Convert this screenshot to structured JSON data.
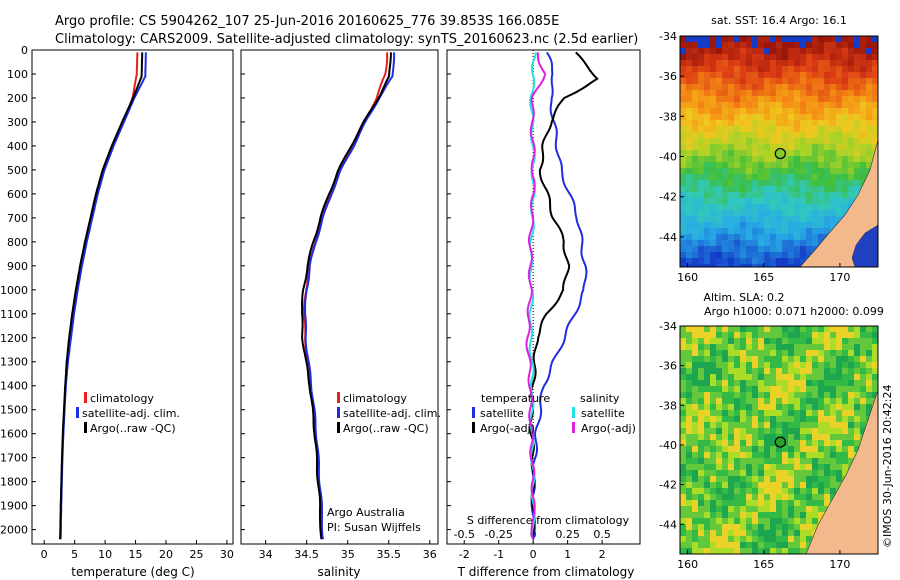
{
  "header": {
    "line1": "Argo profile: CS 5904262_107 25-Jun-2016 20160625_776 39.853S 166.085E",
    "line2": "Climatology: CARS2009. Satellite-adjusted climatology: synTS_20160623.nc (2.5d earlier)"
  },
  "colors": {
    "climatology": "#e8201c",
    "satellite": "#1c2ee0",
    "argo": "#000000",
    "satellite_salinity": "#22e0e6",
    "argo_salinity": "#e020e0",
    "land": "#f3b98d"
  },
  "footer": {
    "institution": "Argo Australia",
    "pi": "PI: Susan Wijffels",
    "stamp": "©IMOS 30-Jun-2016 20:42:24"
  },
  "chart_data": [
    {
      "type": "line",
      "xlabel": "temperature (deg C)",
      "ylabel": "",
      "xlim": [
        -2,
        31
      ],
      "ylim": [
        2060,
        0
      ],
      "xticks": [
        "0",
        "5",
        "10",
        "15",
        "20",
        "25",
        "30"
      ],
      "yticks": [
        "0",
        "100",
        "200",
        "300",
        "400",
        "500",
        "600",
        "700",
        "800",
        "900",
        "1000",
        "1100",
        "1200",
        "1300",
        "1400",
        "1500",
        "1600",
        "1700",
        "1800",
        "1900",
        "2000"
      ],
      "legend": [
        "climatology",
        "satellite-adj. clim.",
        "Argo(..raw -QC)"
      ],
      "series": [
        {
          "name": "climatology",
          "x": [
            15.3,
            15.2,
            14.5,
            13.0,
            11.3,
            9.8,
            8.7,
            7.8,
            6.9,
            6.1,
            5.4,
            4.8,
            4.3,
            3.8,
            3.5,
            3.3,
            3.1,
            2.95,
            2.85,
            2.75,
            2.65
          ],
          "y": [
            10,
            100,
            200,
            300,
            400,
            500,
            600,
            700,
            800,
            900,
            1000,
            1100,
            1200,
            1300,
            1400,
            1500,
            1600,
            1700,
            1800,
            1900,
            2040
          ]
        },
        {
          "name": "satellite-adj. clim.",
          "x": [
            16.7,
            16.6,
            14.8,
            13.1,
            11.4,
            9.9,
            8.8,
            7.9,
            7.0,
            6.2,
            5.5,
            4.9,
            4.4,
            3.9,
            3.55,
            3.35,
            3.15,
            3.0,
            2.9,
            2.8,
            2.7
          ],
          "y": [
            10,
            110,
            200,
            300,
            400,
            500,
            600,
            700,
            800,
            900,
            1000,
            1100,
            1200,
            1300,
            1400,
            1500,
            1600,
            1700,
            1800,
            1900,
            2040
          ]
        },
        {
          "name": "Argo(..raw -QC)",
          "x": [
            16.1,
            16.0,
            14.6,
            12.8,
            11.1,
            9.6,
            8.5,
            7.6,
            6.7,
            5.9,
            5.2,
            4.6,
            4.1,
            3.7,
            3.45,
            3.25,
            3.05,
            2.92,
            2.82,
            2.72,
            2.62
          ],
          "y": [
            10,
            110,
            200,
            300,
            400,
            500,
            600,
            700,
            800,
            900,
            1000,
            1100,
            1200,
            1300,
            1400,
            1500,
            1600,
            1700,
            1800,
            1900,
            2040
          ]
        }
      ]
    },
    {
      "type": "line",
      "xlabel": "salinity",
      "ylabel": "",
      "xlim": [
        33.7,
        36.1
      ],
      "ylim": [
        2060,
        0
      ],
      "xticks": [
        "34",
        "34.5",
        "35",
        "35.5",
        "36"
      ],
      "legend": [
        "climatology",
        "satellite-adj. clim.",
        "Argo(..raw -QC)"
      ],
      "series": [
        {
          "name": "climatology",
          "x": [
            35.48,
            35.46,
            35.35,
            35.2,
            35.05,
            34.9,
            34.78,
            34.68,
            34.6,
            34.53,
            34.49,
            34.47,
            34.48,
            34.51,
            34.55,
            34.58,
            34.61,
            34.63,
            34.65,
            34.67,
            34.69
          ],
          "y": [
            10,
            100,
            200,
            300,
            400,
            500,
            600,
            700,
            800,
            900,
            1000,
            1100,
            1200,
            1300,
            1400,
            1500,
            1600,
            1700,
            1800,
            1900,
            2040
          ]
        },
        {
          "name": "satellite-adj. clim.",
          "x": [
            35.56,
            35.55,
            35.38,
            35.22,
            35.07,
            34.92,
            34.8,
            34.7,
            34.61,
            34.54,
            34.5,
            34.48,
            34.49,
            34.52,
            34.56,
            34.59,
            34.62,
            34.64,
            34.66,
            34.68,
            34.7
          ],
          "y": [
            10,
            110,
            200,
            300,
            400,
            500,
            600,
            700,
            800,
            900,
            1000,
            1100,
            1200,
            1300,
            1400,
            1500,
            1600,
            1700,
            1800,
            1900,
            2040
          ]
        },
        {
          "name": "Argo(..raw -QC)",
          "x": [
            35.52,
            35.51,
            35.37,
            35.2,
            35.04,
            34.89,
            34.77,
            34.67,
            34.58,
            34.51,
            34.46,
            34.44,
            34.45,
            34.49,
            34.54,
            34.57,
            34.6,
            34.62,
            34.64,
            34.66,
            34.68
          ],
          "y": [
            10,
            110,
            200,
            300,
            400,
            500,
            600,
            700,
            800,
            900,
            1000,
            1100,
            1200,
            1300,
            1400,
            1500,
            1600,
            1700,
            1800,
            1900,
            2040
          ]
        }
      ]
    },
    {
      "type": "line",
      "xlabel": "T difference from climatology",
      "x2label": "S difference from climatology",
      "xlim": [
        -2.5,
        3.1
      ],
      "x2lim": [
        -0.625,
        0.775
      ],
      "ylim": [
        2060,
        0
      ],
      "xticks": [
        "-2",
        "-1",
        "0",
        "1",
        "2"
      ],
      "x2ticks": [
        "-0.5",
        "-0.25",
        "0",
        "0.25",
        "0.5"
      ],
      "legend_headers": [
        "temperature",
        "salinity"
      ],
      "legend": [
        "satellite",
        "Argo(-adj)",
        "satellite",
        "Argo(-adj)"
      ],
      "series": [
        {
          "name": "satellite",
          "axis": "T",
          "x": [
            0.4,
            0.6,
            0.5,
            0.6,
            0.7,
            0.8,
            1.05,
            1.3,
            1.4,
            1.5,
            1.5,
            1.2,
            0.9,
            0.6,
            0.3,
            0.2,
            0.1,
            0.05,
            0.0,
            0.0,
            0.0
          ],
          "y": [
            10,
            100,
            200,
            300,
            400,
            500,
            600,
            700,
            800,
            900,
            1000,
            1100,
            1200,
            1300,
            1400,
            1500,
            1600,
            1700,
            1800,
            1900,
            2040
          ]
        },
        {
          "name": "Argo(-adj)",
          "axis": "T",
          "x": [
            1.2,
            1.9,
            0.9,
            0.5,
            0.3,
            0.2,
            0.4,
            0.6,
            0.9,
            1.0,
            0.9,
            0.4,
            0.1,
            0.05,
            0.0,
            -0.05,
            -0.05,
            0.0,
            0.0,
            0.0,
            0.0
          ],
          "y": [
            10,
            120,
            200,
            300,
            400,
            500,
            600,
            700,
            800,
            900,
            1000,
            1100,
            1200,
            1300,
            1400,
            1500,
            1600,
            1700,
            1800,
            1900,
            2040
          ]
        },
        {
          "name": "satellite",
          "axis": "S",
          "x": [
            0.01,
            0.0,
            -0.01,
            -0.01,
            0.0,
            0.0,
            0.0,
            -0.005,
            -0.01,
            -0.02,
            -0.01,
            -0.015,
            -0.02,
            -0.01,
            -0.005,
            -0.01,
            -0.01,
            -0.005,
            0.0,
            0.0,
            0.0
          ],
          "y": [
            10,
            100,
            200,
            300,
            400,
            500,
            600,
            700,
            800,
            900,
            1000,
            1100,
            1200,
            1300,
            1400,
            1500,
            1600,
            1700,
            1800,
            1900,
            2040
          ]
        },
        {
          "name": "Argo(-adj)",
          "axis": "S",
          "x": [
            0.03,
            0.08,
            0.0,
            -0.01,
            0.0,
            0.0,
            0.0,
            -0.01,
            -0.02,
            -0.02,
            -0.02,
            -0.03,
            -0.04,
            -0.03,
            -0.02,
            -0.02,
            -0.01,
            -0.01,
            0.0,
            0.0,
            0.0
          ],
          "y": [
            10,
            100,
            200,
            300,
            400,
            500,
            600,
            700,
            800,
            900,
            1000,
            1100,
            1200,
            1300,
            1400,
            1500,
            1600,
            1700,
            1800,
            1900,
            2040
          ]
        }
      ]
    },
    {
      "type": "heatmap",
      "title": "sat. SST: 16.4 Argo: 16.1",
      "xlim": [
        159.5,
        172.5
      ],
      "ylim": [
        -45.5,
        -34
      ],
      "xticks": [
        "160",
        "165",
        "170"
      ],
      "yticks": [
        "-34",
        "-36",
        "-38",
        "-40",
        "-42",
        "-44"
      ],
      "marker": {
        "x": 166.085,
        "y": -39.853
      },
      "grid": false
    },
    {
      "type": "heatmap",
      "title": "Altim. SLA: 0.2",
      "subtitle": "Argo h1000: 0.071 h2000: 0.099",
      "xlim": [
        159.5,
        172.5
      ],
      "ylim": [
        -45.5,
        -34
      ],
      "xticks": [
        "160",
        "165",
        "170"
      ],
      "yticks": [
        "-34",
        "-36",
        "-38",
        "-40",
        "-42",
        "-44"
      ],
      "marker": {
        "x": 166.085,
        "y": -39.853
      },
      "grid": false
    }
  ]
}
